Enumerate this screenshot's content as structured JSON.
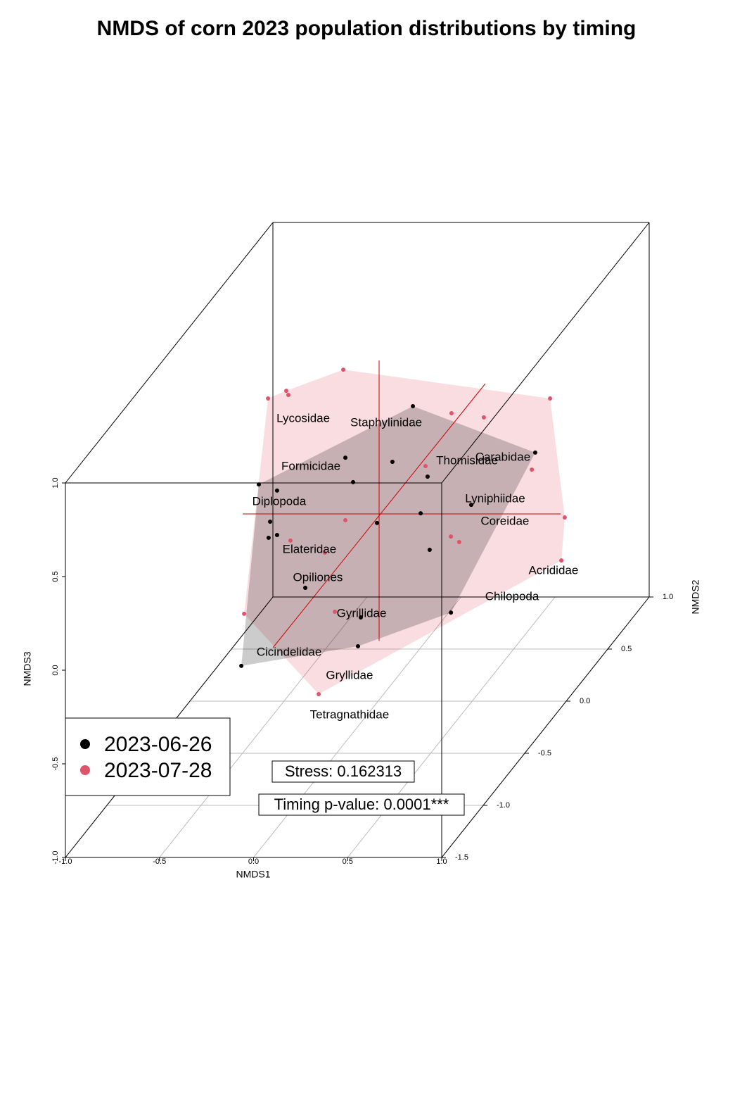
{
  "chart_data": {
    "type": "scatter3d",
    "title": "NMDS of corn 2023 population distributions by timing",
    "x_label": "NMDS1",
    "y_label": "NMDS3",
    "z_label": "NMDS2",
    "xlim": [
      -1,
      1
    ],
    "ylim": [
      -1,
      1
    ],
    "zlim": [
      -1.5,
      1
    ],
    "xticks": [
      {
        "value": -1,
        "label": "-1.0"
      },
      -0.5,
      {
        "value": 0,
        "label": "0.0"
      },
      0.5,
      {
        "value": 1,
        "label": "1.0"
      }
    ],
    "yticks": [
      {
        "value": -1,
        "label": "-1.0"
      },
      -0.5,
      {
        "value": 0,
        "label": "0.0"
      },
      0.5,
      {
        "value": 1,
        "label": "1.0"
      }
    ],
    "zticks": [
      {
        "value": -1.5,
        "label": "-1.5"
      },
      {
        "value": -1,
        "label": "-1.0"
      },
      -0.5,
      {
        "value": 0,
        "label": "0.0"
      },
      0.5,
      {
        "value": 1,
        "label": "1.0"
      }
    ],
    "series": [
      {
        "name": "2023-06-26",
        "color": "#000000",
        "x": [
          0.847,
          1.497,
          0.488,
          0.738,
          0.925,
          0.529,
          0.028,
          0.125,
          1.157,
          0.888,
          0.088,
          0.656,
          0.125,
          0.08,
          0.936,
          0.275,
          0.57,
          1.049,
          0.555,
          -0.065
        ],
        "values": [
          1.41,
          1.162,
          1.135,
          1.113,
          1.034,
          1.004,
          0.992,
          0.959,
          0.883,
          0.838,
          0.793,
          0.786,
          0.722,
          0.707,
          0.643,
          0.44,
          0.282,
          0.308,
          0.128,
          0.023
        ]
      },
      {
        "name": "2023-07-28",
        "color": "#DF536B",
        "x": [
          0.477,
          0.174,
          0.185,
          0.077,
          1.576,
          1.052,
          1.224,
          0.914,
          1.479,
          1.654,
          0.488,
          0.196,
          1.049,
          1.093,
          1.636,
          0.379,
          -0.05,
          0.432,
          0.346
        ],
        "values": [
          1.605,
          1.492,
          1.47,
          1.451,
          1.451,
          1.372,
          1.35,
          1.09,
          1.071,
          0.816,
          0.801,
          0.692,
          0.714,
          0.684,
          0.586,
          0.628,
          0.301,
          0.312,
          -0.128
        ]
      }
    ],
    "species": {
      "names": [
        "Lycosidae",
        "Staphylinidae",
        "Formicidae",
        "Thomisidae",
        "Carabidae",
        "Lyniphiidae",
        "Diplopoda",
        "Coreidae",
        "Elateridae",
        "Acrididae",
        "Opiliones",
        "Chilopoda",
        "Gyrillidae",
        "Cicindelidae",
        "Gryllidae",
        "Tetragnathidae"
      ],
      "x": [
        0.264,
        0.705,
        0.305,
        1.135,
        1.325,
        1.284,
        0.136,
        1.336,
        0.297,
        1.594,
        0.342,
        1.374,
        0.574,
        0.189,
        0.51,
        0.51
      ],
      "values": [
        1.342,
        1.32,
        1.086,
        1.117,
        1.135,
        0.914,
        0.898,
        0.793,
        0.643,
        0.53,
        0.492,
        0.391,
        0.301,
        0.094,
        -0.03,
        -0.241
      ]
    },
    "annotations": [
      "Stress: 0.162313",
      "Timing p-value: 0.0001***"
    ]
  }
}
